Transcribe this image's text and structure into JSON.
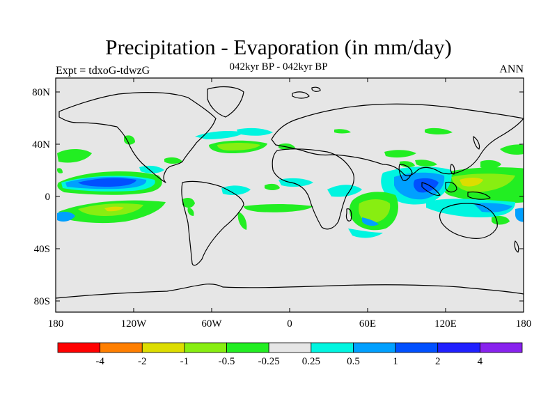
{
  "title": "Precipitation - Evaporation (in mm/day)",
  "subtitle": "042kyr BP - 042kyr BP",
  "left_label": "Expt = tdxoG-tdwzG",
  "right_label": "ANN",
  "colors": {
    "land": "#e6e6e6",
    "coast": "#000000"
  },
  "axes": {
    "x_ticks": [
      "180",
      "120W",
      "60W",
      "0",
      "60E",
      "120E",
      "180"
    ],
    "y_ticks": [
      "80N",
      "40N",
      "0",
      "40S",
      "80S"
    ]
  },
  "colorbar": {
    "colors": [
      "#ff0000",
      "#ff7f00",
      "#dddd00",
      "#88ee11",
      "#22ee22",
      "#e6e6e6",
      "#00f5e0",
      "#00a0ff",
      "#0050ff",
      "#2020ff",
      "#8822ee"
    ],
    "labels": [
      "-4",
      "-2",
      "-1",
      "-0.5",
      "-0.25",
      "0.25",
      "0.5",
      "1",
      "2",
      "4"
    ]
  }
}
